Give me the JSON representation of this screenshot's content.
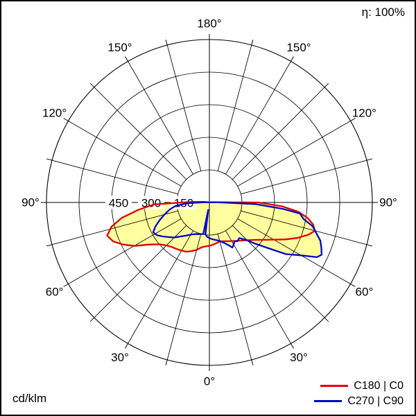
{
  "header": {
    "efficiency_label": "η: 100%"
  },
  "footer": {
    "units_label": "cd/klm"
  },
  "legend": [
    {
      "label": "C180 | C0",
      "color": "#e00000"
    },
    {
      "label": "C270 | C90",
      "color": "#0000cd"
    }
  ],
  "chart_data": {
    "type": "polar",
    "subtype": "luminous-intensity-distribution",
    "units": "cd/klm",
    "efficiency_percent": 100,
    "gamma_zero_direction": "down",
    "rings_cd": [
      150,
      300,
      450,
      600
    ],
    "outer_ring_cd": 750,
    "ring_label_values": [
      150,
      300,
      450
    ],
    "spoke_step_deg": 15,
    "angle_labels": [
      {
        "deg": 0,
        "text": "0°"
      },
      {
        "deg": 30,
        "text": "30°"
      },
      {
        "deg": 60,
        "text": "60°"
      },
      {
        "deg": 90,
        "text": "90°"
      },
      {
        "deg": 120,
        "text": "120°"
      },
      {
        "deg": 150,
        "text": "150°"
      },
      {
        "deg": 180,
        "text": "180°"
      }
    ],
    "fill_color": "#ffffa0",
    "series": [
      {
        "name": "C180 | C0",
        "color": "#e00000",
        "points": [
          [
            -100,
            5
          ],
          [
            -96,
            25
          ],
          [
            -92,
            80
          ],
          [
            -88,
            255
          ],
          [
            -84,
            330
          ],
          [
            -80,
            410
          ],
          [
            -76,
            465
          ],
          [
            -72,
            495
          ],
          [
            -68,
            478
          ],
          [
            -64,
            442
          ],
          [
            -60,
            400
          ],
          [
            -55,
            338
          ],
          [
            -50,
            300
          ],
          [
            -45,
            280
          ],
          [
            -40,
            268
          ],
          [
            -35,
            262
          ],
          [
            -30,
            256
          ],
          [
            -25,
            250
          ],
          [
            -20,
            238
          ],
          [
            -15,
            226
          ],
          [
            -10,
            210
          ],
          [
            -5,
            203
          ],
          [
            0,
            200
          ],
          [
            5,
            195
          ],
          [
            10,
            190
          ],
          [
            15,
            186
          ],
          [
            20,
            190
          ],
          [
            25,
            197
          ],
          [
            30,
            205
          ],
          [
            35,
            216
          ],
          [
            40,
            229
          ],
          [
            45,
            246
          ],
          [
            50,
            268
          ],
          [
            55,
            300
          ],
          [
            60,
            342
          ],
          [
            64,
            388
          ],
          [
            68,
            436
          ],
          [
            72,
            480
          ],
          [
            75,
            503
          ],
          [
            78,
            488
          ],
          [
            81,
            458
          ],
          [
            84,
            412
          ],
          [
            87,
            335
          ],
          [
            90,
            225
          ],
          [
            92,
            40
          ],
          [
            96,
            10
          ],
          [
            100,
            3
          ]
        ]
      },
      {
        "name": "C270 | C90",
        "color": "#0000cd",
        "points": [
          [
            -95,
            5
          ],
          [
            -91,
            30
          ],
          [
            -88,
            105
          ],
          [
            -84,
            158
          ],
          [
            -80,
            185
          ],
          [
            -75,
            214
          ],
          [
            -70,
            246
          ],
          [
            -66,
            272
          ],
          [
            -62,
            293
          ],
          [
            -58,
            284
          ],
          [
            -54,
            266
          ],
          [
            -50,
            248
          ],
          [
            -45,
            228
          ],
          [
            -40,
            204
          ],
          [
            -35,
            186
          ],
          [
            -30,
            171
          ],
          [
            -25,
            161
          ],
          [
            -20,
            155
          ],
          [
            -15,
            151
          ],
          [
            -11,
            148
          ],
          [
            -9,
            35
          ],
          [
            -7,
            148
          ],
          [
            -4,
            158
          ],
          [
            0,
            164
          ],
          [
            5,
            170
          ],
          [
            10,
            176
          ],
          [
            15,
            183
          ],
          [
            20,
            198
          ],
          [
            24,
            215
          ],
          [
            27,
            233
          ],
          [
            30,
            224
          ],
          [
            33,
            213
          ],
          [
            36,
            220
          ],
          [
            40,
            214
          ],
          [
            44,
            238
          ],
          [
            48,
            284
          ],
          [
            52,
            340
          ],
          [
            56,
            425
          ],
          [
            60,
            487
          ],
          [
            63,
            555
          ],
          [
            65,
            570
          ],
          [
            68,
            556
          ],
          [
            71,
            540
          ],
          [
            74,
            512
          ],
          [
            77,
            488
          ],
          [
            80,
            440
          ],
          [
            83,
            420
          ],
          [
            85,
            340
          ],
          [
            88,
            210
          ],
          [
            91,
            45
          ],
          [
            94,
            12
          ],
          [
            98,
            3
          ]
        ]
      }
    ]
  }
}
